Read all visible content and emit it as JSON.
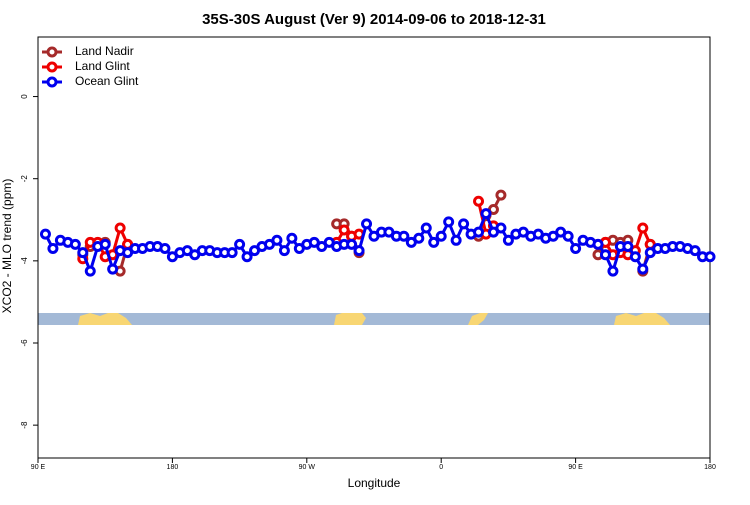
{
  "chart_data": {
    "type": "line",
    "title": "35S-30S August (Ver 9)   2014-09-06 to 2018-12-31",
    "x_label": "Longitude",
    "y_label": "XCO2 - MLO trend (ppm)",
    "xlim": [
      90,
      540
    ],
    "xticks": [
      {
        "value": 90,
        "label": "90 E"
      },
      {
        "value": 180,
        "label": "180"
      },
      {
        "value": 270,
        "label": "90 W"
      },
      {
        "value": 360,
        "label": "0"
      },
      {
        "value": 450,
        "label": "90 E"
      },
      {
        "value": 540,
        "label": "180"
      }
    ],
    "ylim": [
      -8.8,
      1.45
    ],
    "yticks": [
      0,
      -2,
      -4,
      -6,
      -8
    ],
    "legend": "top-left",
    "series": [
      {
        "name": "Land Nadir",
        "color": "#a52a2a",
        "x": [
          120,
          125,
          130,
          135,
          140,
          145,
          150,
          155,
          290,
          295,
          300,
          305,
          310,
          385,
          390,
          395,
          400,
          405,
          465,
          470,
          475,
          480,
          485,
          490,
          495,
          500
        ],
        "values": [
          -3.85,
          -3.65,
          -3.6,
          -3.55,
          null,
          -4.25,
          -3.6,
          null,
          -3.1,
          -3.1,
          -3.4,
          -3.8,
          null,
          -3.4,
          -2.9,
          -2.75,
          -2.4,
          null,
          -3.85,
          -3.55,
          -3.5,
          -3.55,
          -3.5,
          null,
          -4.25,
          -3.6
        ]
      },
      {
        "name": "Land Glint",
        "color": "#ee0000",
        "x": [
          120,
          125,
          130,
          135,
          140,
          145,
          150,
          155,
          290,
          295,
          300,
          305,
          310,
          385,
          390,
          395,
          400,
          465,
          470,
          475,
          480,
          485,
          490,
          495,
          500
        ],
        "values": [
          -3.95,
          -3.55,
          -3.55,
          -3.9,
          -3.85,
          -3.2,
          -3.6,
          null,
          -3.55,
          -3.25,
          -3.4,
          -3.35,
          null,
          -2.55,
          -3.35,
          -3.15,
          null,
          -3.6,
          -3.55,
          -3.85,
          -3.8,
          -3.85,
          -3.75,
          -3.2,
          -3.6
        ]
      },
      {
        "name": "Ocean Glint",
        "color": "#0000ee",
        "x": [
          95,
          100,
          105,
          110,
          115,
          120,
          125,
          130,
          135,
          140,
          145,
          150,
          155,
          160,
          165,
          170,
          175,
          180,
          185,
          190,
          195,
          200,
          205,
          210,
          215,
          220,
          225,
          230,
          235,
          240,
          245,
          250,
          255,
          260,
          265,
          270,
          275,
          280,
          285,
          290,
          295,
          300,
          305,
          310,
          315,
          320,
          325,
          330,
          335,
          340,
          345,
          350,
          355,
          360,
          365,
          370,
          375,
          380,
          385,
          390,
          395,
          400,
          405,
          410,
          415,
          420,
          425,
          430,
          435,
          440,
          445,
          450,
          455,
          460,
          465,
          470,
          475,
          480,
          485,
          490,
          495,
          500,
          505,
          510,
          515,
          520,
          525,
          530,
          535,
          540
        ],
        "values": [
          -3.35,
          -3.7,
          -3.5,
          -3.55,
          -3.6,
          -3.8,
          -4.25,
          -3.65,
          -3.6,
          -4.2,
          -3.75,
          -3.8,
          -3.7,
          -3.7,
          -3.65,
          -3.65,
          -3.7,
          -3.9,
          -3.8,
          -3.75,
          -3.85,
          -3.75,
          -3.75,
          -3.8,
          -3.8,
          -3.8,
          -3.6,
          -3.9,
          -3.75,
          -3.65,
          -3.6,
          -3.5,
          -3.75,
          -3.45,
          -3.7,
          -3.6,
          -3.55,
          -3.65,
          -3.55,
          -3.65,
          -3.6,
          -3.6,
          -3.75,
          -3.1,
          -3.4,
          -3.3,
          -3.3,
          -3.4,
          -3.4,
          -3.55,
          -3.45,
          -3.2,
          -3.55,
          -3.4,
          -3.05,
          -3.5,
          -3.1,
          -3.35,
          -3.3,
          -2.85,
          -3.3,
          -3.2,
          -3.5,
          -3.35,
          -3.3,
          -3.4,
          -3.35,
          -3.45,
          -3.4,
          -3.3,
          -3.4,
          -3.7,
          -3.5,
          -3.55,
          -3.6,
          -3.85,
          -4.25,
          -3.65,
          -3.65,
          -3.9,
          -4.2,
          -3.8,
          -3.7,
          -3.7,
          -3.65,
          -3.65,
          -3.7,
          -3.75,
          -3.9,
          -3.9
        ]
      }
    ]
  }
}
